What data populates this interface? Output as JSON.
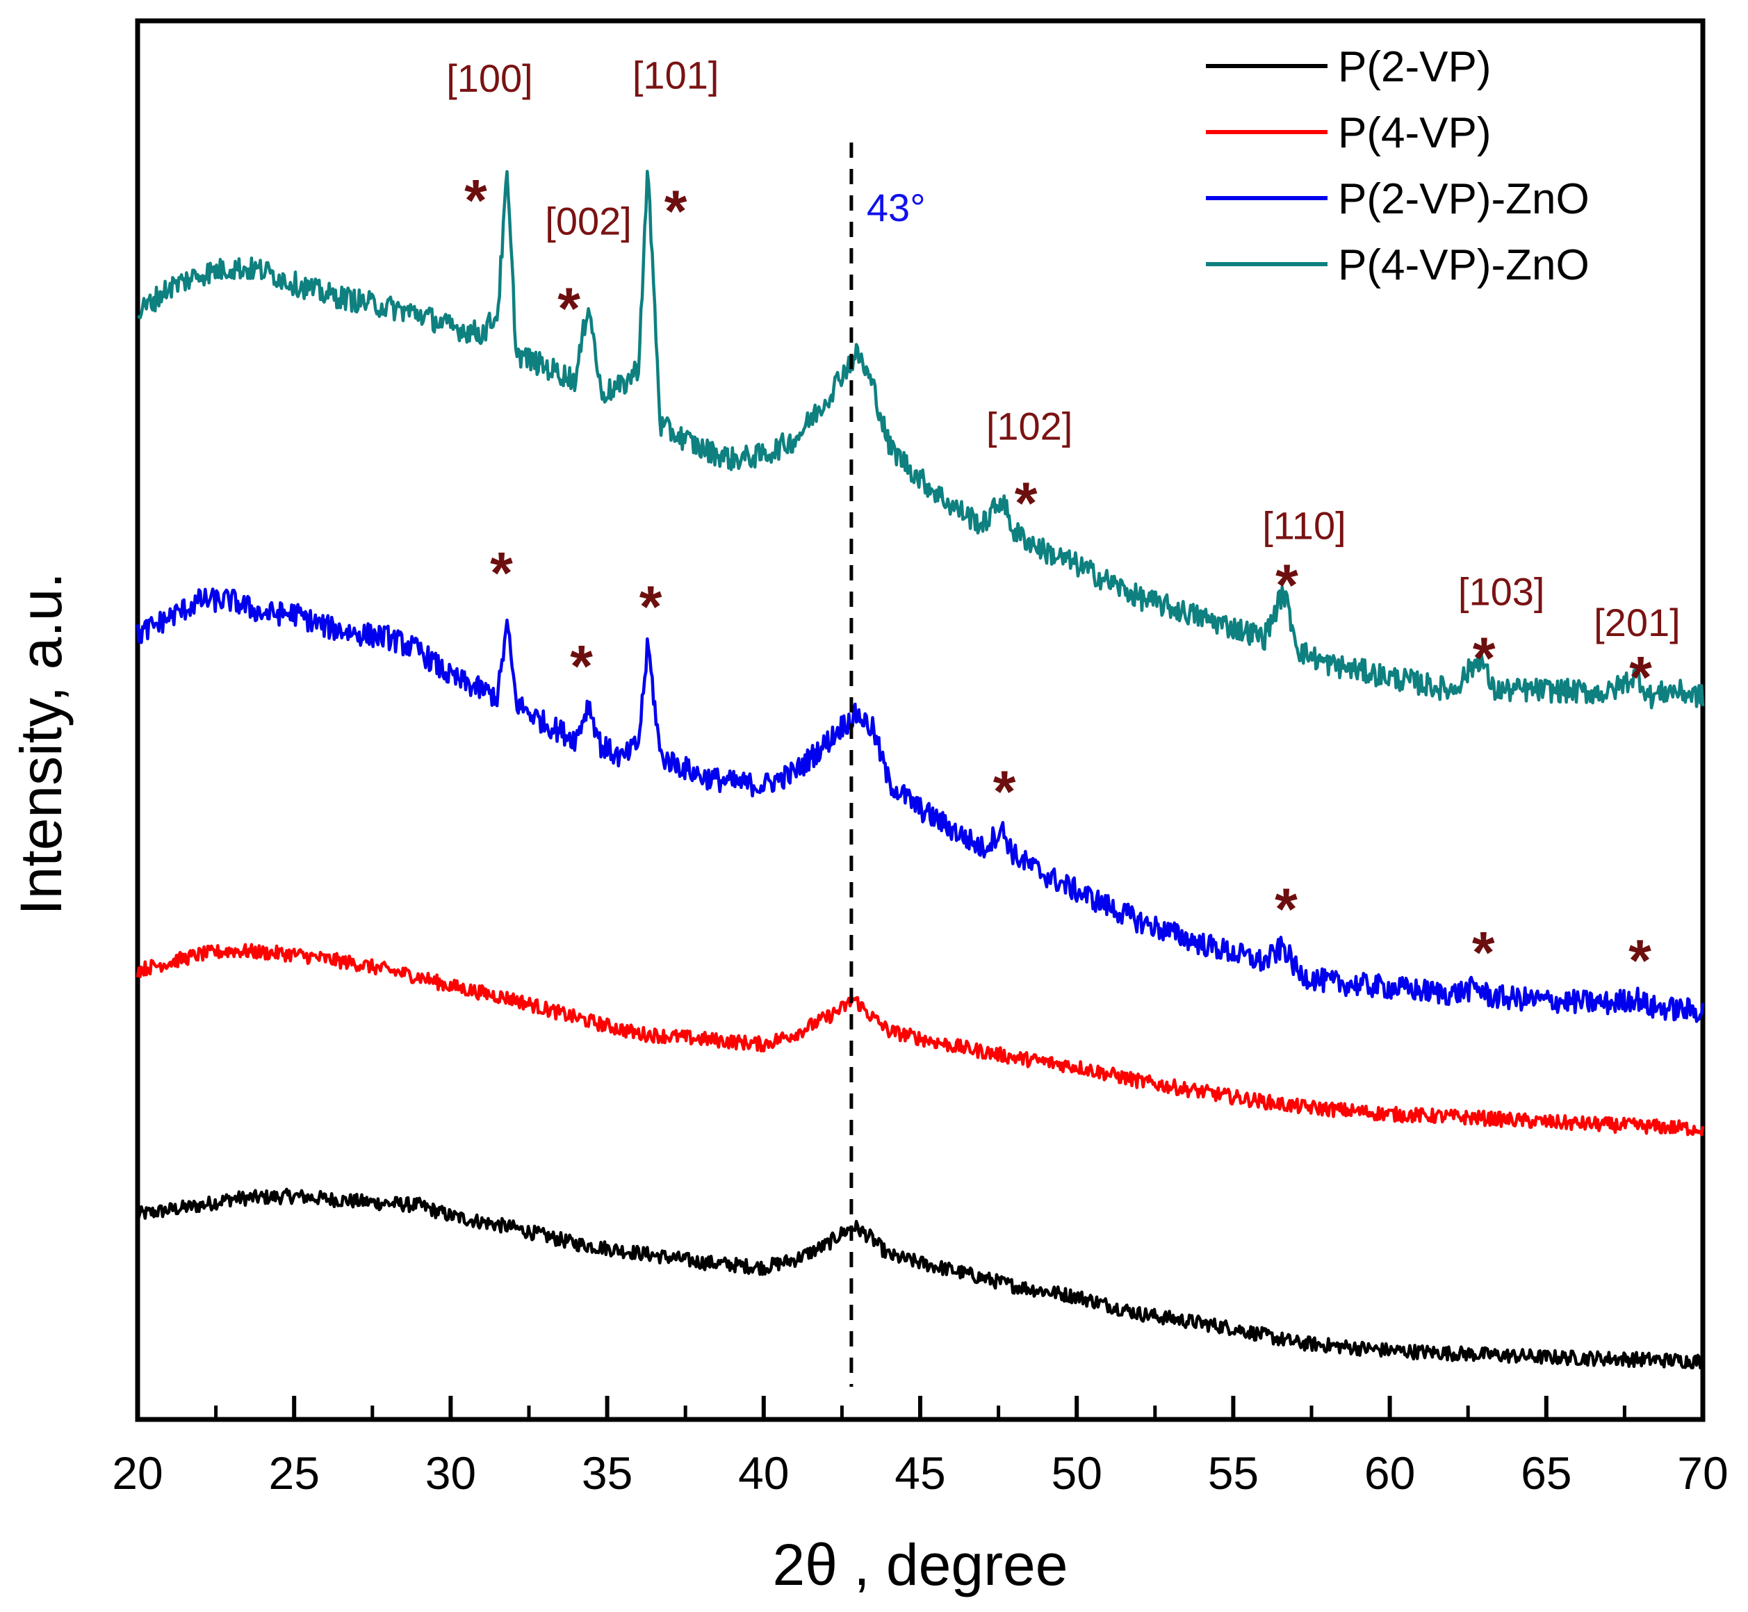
{
  "chart_data": {
    "type": "line",
    "title": "",
    "xlabel": "2θ , degree",
    "ylabel": "Intensity, a.u.",
    "xlim": [
      20,
      70
    ],
    "ylim": [
      0,
      100
    ],
    "x_ticks": [
      20,
      25,
      30,
      35,
      40,
      45,
      50,
      55,
      60,
      65,
      70
    ],
    "x_tick_labels": [
      "20",
      "25",
      "30",
      "35",
      "40",
      "45",
      "50",
      "55",
      "60",
      "65",
      "70"
    ],
    "y_ticks_shown": false,
    "legend_position": "top-right",
    "reference_line": {
      "x": 42.8,
      "label": "43°",
      "color": "#1010ee",
      "style": "dashed"
    },
    "series": [
      {
        "name": "P(2-VP)",
        "color": "#000000",
        "points": [
          [
            20,
            13.3
          ],
          [
            22,
            14
          ],
          [
            23,
            14.5
          ],
          [
            25,
            14.7
          ],
          [
            27,
            14.3
          ],
          [
            29,
            14.0
          ],
          [
            30,
            13.2
          ],
          [
            32,
            12.3
          ],
          [
            34,
            11.1
          ],
          [
            36,
            10.4
          ],
          [
            38,
            9.7
          ],
          [
            40,
            9.3
          ],
          [
            41,
            9.9
          ],
          [
            42,
            11.0
          ],
          [
            42.5,
            11.9
          ],
          [
            42.9,
            12.4
          ],
          [
            43.4,
            11.6
          ],
          [
            44,
            10.2
          ],
          [
            46,
            9.1
          ],
          [
            48,
            7.9
          ],
          [
            50,
            7.1
          ],
          [
            52,
            5.8
          ],
          [
            55,
            4.7
          ],
          [
            57,
            3.6
          ],
          [
            60,
            3.0
          ],
          [
            63,
            2.7
          ],
          [
            65,
            2.5
          ],
          [
            67,
            2.4
          ],
          [
            70,
            2.2
          ]
        ]
      },
      {
        "name": "P(4-VP)",
        "color": "#ff0000",
        "points": [
          [
            20,
            31.8
          ],
          [
            22,
            33.0
          ],
          [
            23,
            33.3
          ],
          [
            25,
            33.0
          ],
          [
            27,
            32.3
          ],
          [
            29,
            31.3
          ],
          [
            30,
            30.6
          ],
          [
            32,
            29.6
          ],
          [
            34,
            28.2
          ],
          [
            36,
            27.0
          ],
          [
            38,
            26.6
          ],
          [
            40,
            26.2
          ],
          [
            41,
            27.0
          ],
          [
            42,
            28.2
          ],
          [
            42.5,
            28.9
          ],
          [
            42.9,
            29.6
          ],
          [
            43.4,
            28.4
          ],
          [
            44,
            27.2
          ],
          [
            46,
            26.1
          ],
          [
            48,
            25.2
          ],
          [
            50,
            24.5
          ],
          [
            52,
            23.4
          ],
          [
            55,
            22.2
          ],
          [
            57,
            21.5
          ],
          [
            60,
            20.9
          ],
          [
            63,
            20.6
          ],
          [
            65,
            20.3
          ],
          [
            67,
            20.1
          ],
          [
            70,
            19.8
          ]
        ]
      },
      {
        "name": "P(2-VP)-ZnO",
        "color": "#0000ee",
        "points": [
          [
            20,
            57.2
          ],
          [
            21,
            58.5
          ],
          [
            22,
            59.8
          ],
          [
            23,
            59.8
          ],
          [
            24,
            58.8
          ],
          [
            25,
            58.8
          ],
          [
            26,
            57.8
          ],
          [
            27,
            57.3
          ],
          [
            28,
            57.0
          ],
          [
            29,
            56.0
          ],
          [
            30,
            54.0
          ],
          [
            31,
            53.0
          ],
          [
            31.5,
            52.5
          ],
          [
            31.8,
            58.0
          ],
          [
            32.1,
            52.0
          ],
          [
            33,
            50.5
          ],
          [
            34,
            49.3
          ],
          [
            34.4,
            52.0
          ],
          [
            34.8,
            48.8
          ],
          [
            35.5,
            47.8
          ],
          [
            36.0,
            49.0
          ],
          [
            36.3,
            56.5
          ],
          [
            36.7,
            48.0
          ],
          [
            38,
            46.5
          ],
          [
            39,
            46.0
          ],
          [
            40,
            45.8
          ],
          [
            41,
            46.8
          ],
          [
            42,
            49.0
          ],
          [
            42.5,
            50.3
          ],
          [
            43,
            51.2
          ],
          [
            43.5,
            50.0
          ],
          [
            44,
            46.0
          ],
          [
            45,
            44.0
          ],
          [
            46,
            42.5
          ],
          [
            47,
            41.0
          ],
          [
            47.6,
            42.5
          ],
          [
            48,
            40.5
          ],
          [
            49,
            39.0
          ],
          [
            50,
            37.8
          ],
          [
            52,
            35.5
          ],
          [
            54,
            33.8
          ],
          [
            56,
            32.4
          ],
          [
            56.6,
            33.6
          ],
          [
            57.1,
            31.5
          ],
          [
            58,
            30.9
          ],
          [
            60,
            30.5
          ],
          [
            62,
            30.0
          ],
          [
            62.8,
            30.5
          ],
          [
            63.2,
            29.8
          ],
          [
            65,
            29.5
          ],
          [
            67,
            29.3
          ],
          [
            67.9,
            29.7
          ],
          [
            68.3,
            29.0
          ],
          [
            70,
            28.7
          ]
        ]
      },
      {
        "name": "P(4-VP)-ZnO",
        "color": "#0e8080",
        "points": [
          [
            20,
            81.5
          ],
          [
            21,
            83.5
          ],
          [
            22,
            84.5
          ],
          [
            23,
            85.0
          ],
          [
            24,
            84.8
          ],
          [
            25,
            83.8
          ],
          [
            26,
            83.0
          ],
          [
            27,
            82.5
          ],
          [
            28,
            82.0
          ],
          [
            29,
            81.5
          ],
          [
            30,
            80.5
          ],
          [
            31,
            80.0
          ],
          [
            31.5,
            81.5
          ],
          [
            31.8,
            92.0
          ],
          [
            32.1,
            78.5
          ],
          [
            33,
            77.5
          ],
          [
            34,
            76.5
          ],
          [
            34.4,
            82.5
          ],
          [
            34.8,
            75.5
          ],
          [
            35.5,
            76.0
          ],
          [
            36.0,
            77.5
          ],
          [
            36.3,
            92.5
          ],
          [
            36.7,
            73.0
          ],
          [
            37.5,
            72.0
          ],
          [
            38,
            71.3
          ],
          [
            39,
            70.5
          ],
          [
            40,
            70.8
          ],
          [
            41,
            72.0
          ],
          [
            42,
            75.0
          ],
          [
            42.5,
            77.0
          ],
          [
            43,
            78.5
          ],
          [
            43.5,
            76.0
          ],
          [
            44,
            71.5
          ],
          [
            45,
            69.0
          ],
          [
            46,
            67.0
          ],
          [
            47,
            65.5
          ],
          [
            47.6,
            67.5
          ],
          [
            48,
            65.0
          ],
          [
            49,
            63.5
          ],
          [
            50,
            62.5
          ],
          [
            52,
            60.0
          ],
          [
            54,
            58.5
          ],
          [
            56,
            57.0
          ],
          [
            56.6,
            60.5
          ],
          [
            57.1,
            56.0
          ],
          [
            58,
            55.0
          ],
          [
            60,
            54.0
          ],
          [
            62,
            53.0
          ],
          [
            62.9,
            55.5
          ],
          [
            63.3,
            53.0
          ],
          [
            65,
            53.0
          ],
          [
            67,
            52.8
          ],
          [
            67.9,
            54.2
          ],
          [
            68.3,
            52.5
          ],
          [
            69,
            53.0
          ],
          [
            70,
            52.5
          ]
        ]
      }
    ],
    "peak_labels": [
      {
        "label": "[100]",
        "x": 31.8
      },
      {
        "label": "[002]",
        "x": 34.4
      },
      {
        "label": "[101]",
        "x": 36.3
      },
      {
        "label": "[102]",
        "x": 47.6
      },
      {
        "label": "[110]",
        "x": 56.6
      },
      {
        "label": "[103]",
        "x": 62.9
      },
      {
        "label": "[201]",
        "x": 67.9
      }
    ],
    "peak_marker": "*"
  }
}
